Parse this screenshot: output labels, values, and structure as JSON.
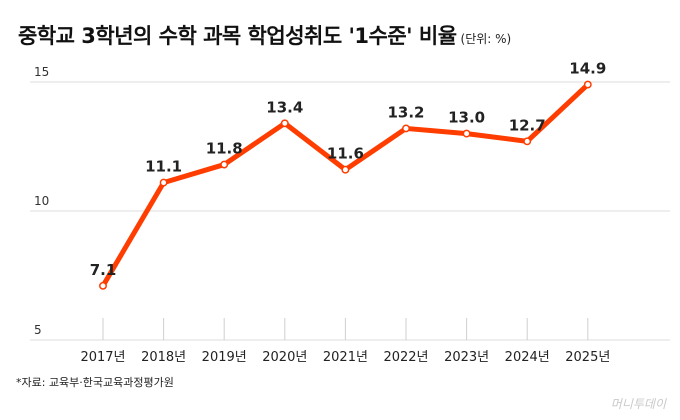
{
  "title": "중학교 3학년의 수학 과목 학업성취도 '1수준' 비율",
  "unit_note": "(단위: %)",
  "source": "*자료: 교육부·한국교육과정평가원",
  "watermark": "머니투데이",
  "colors": {
    "line": "#ff3d00",
    "marker_fill": "#ffffff"
  },
  "chart_data": {
    "type": "line",
    "title": "중학교 3학년의 수학 과목 학업성취도 '1수준' 비율",
    "xlabel": "",
    "ylabel": "",
    "categories": [
      "2017년",
      "2018년",
      "2019년",
      "2020년",
      "2021년",
      "2022년",
      "2023년",
      "2024년",
      "2025년"
    ],
    "series": [
      {
        "values": [
          7.1,
          11.1,
          11.8,
          13.4,
          11.6,
          13.2,
          13.0,
          12.7,
          14.9
        ]
      }
    ],
    "value_labels": [
      "7.1",
      "11.1",
      "11.8",
      "13.4",
      "11.6",
      "13.2",
      "13.0",
      "12.7",
      "14.9"
    ],
    "yticks": [
      5,
      10,
      15
    ],
    "ylim": [
      5,
      15
    ],
    "grid": true,
    "legend": "none"
  }
}
